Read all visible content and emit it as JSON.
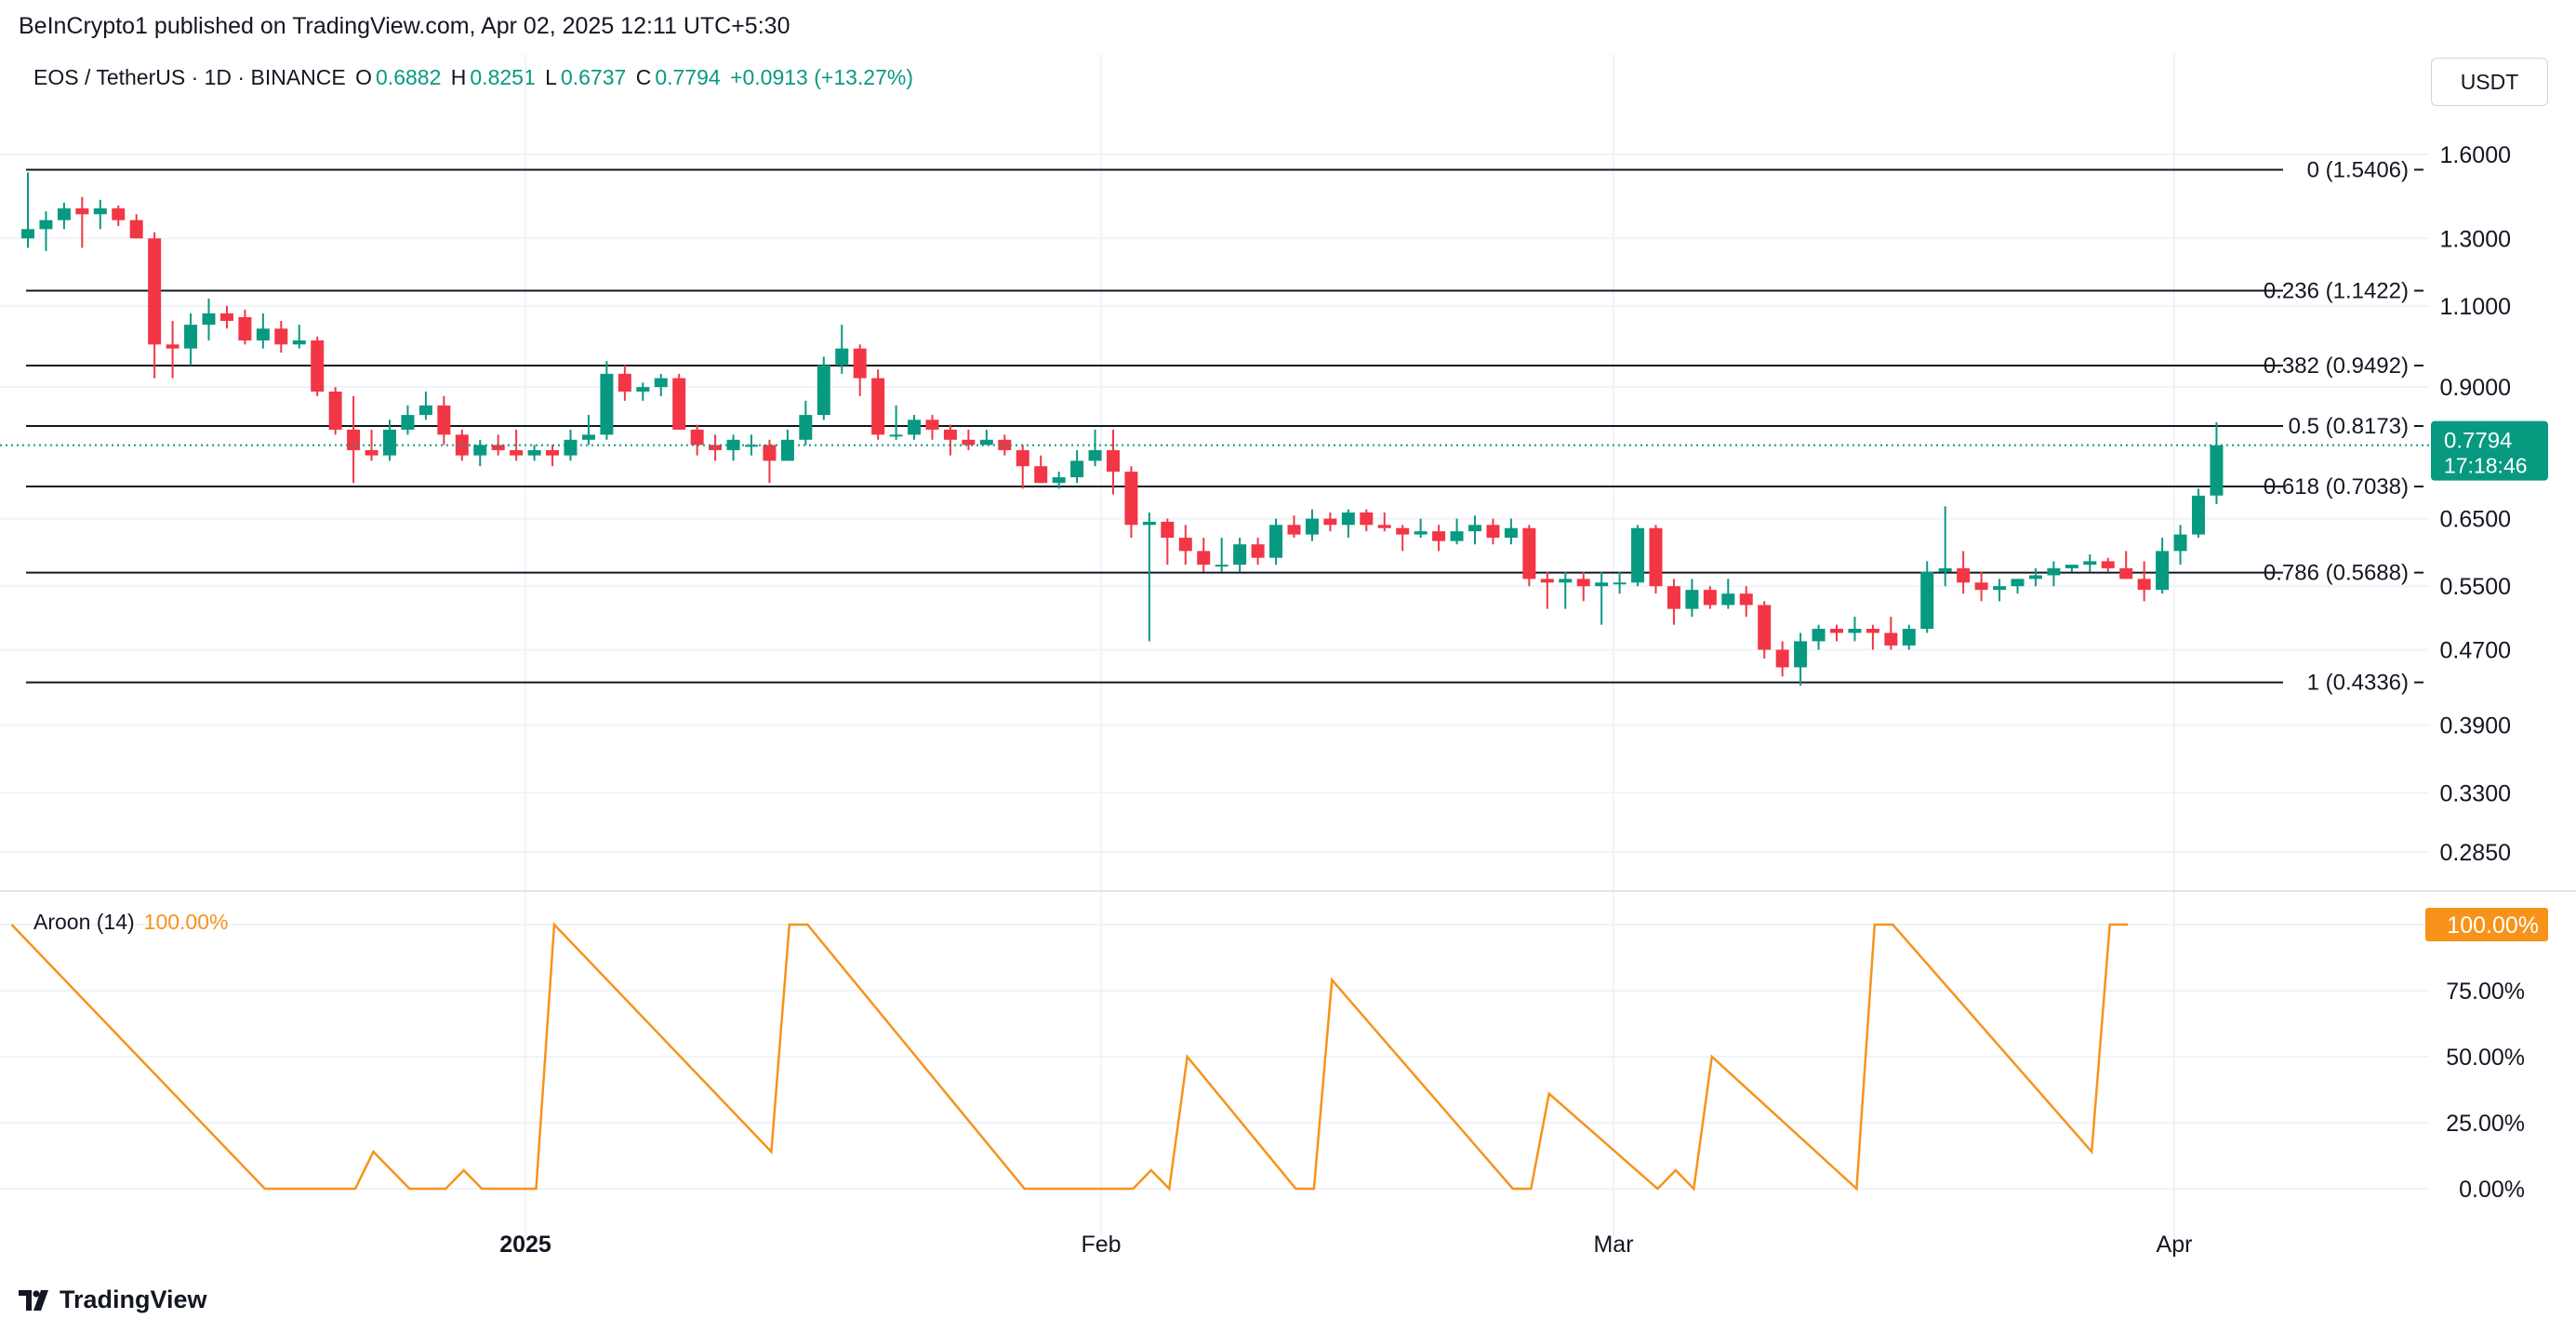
{
  "header": {
    "published": "BeInCrypto1 published on TradingView.com, Apr 02, 2025 12:11 UTC+5:30",
    "symbol": "EOS / TetherUS · 1D · BINANCE",
    "o_label": "O",
    "o_value": "0.6882",
    "h_label": "H",
    "h_value": "0.8251",
    "l_label": "L",
    "l_value": "0.6737",
    "c_label": "C",
    "c_value": "0.7794",
    "change": "+0.0913 (+13.27%)"
  },
  "toolbar": {
    "currency_label": "USDT"
  },
  "footer": {
    "brand": "TradingView"
  },
  "colors": {
    "up": "#089981",
    "down": "#f23645",
    "aroon": "#f7931a",
    "grid": "#f0f3fa",
    "fib": "#131722"
  },
  "chart_data": [
    {
      "type": "candlestick",
      "scale": "log",
      "y_ticks": [
        "1.6000",
        "1.3000",
        "1.1000",
        "0.9000",
        "0.6500",
        "0.5500",
        "0.4700",
        "0.3900",
        "0.3300",
        "0.2850"
      ],
      "x_ticks": [
        "2025",
        "Feb",
        "Mar",
        "Apr"
      ],
      "last_price": {
        "value": "0.7794",
        "countdown": "17:18:46"
      },
      "fib_levels": [
        {
          "ratio": 0,
          "price": 1.5406,
          "label": "0 (1.5406)"
        },
        {
          "ratio": 0.236,
          "price": 1.1422,
          "label": "0.236 (1.1422)"
        },
        {
          "ratio": 0.382,
          "price": 0.9492,
          "label": "0.382 (0.9492)"
        },
        {
          "ratio": 0.5,
          "price": 0.8173,
          "label": "0.5 (0.8173)"
        },
        {
          "ratio": 0.618,
          "price": 0.7038,
          "label": "0.618 (0.7038)"
        },
        {
          "ratio": 0.786,
          "price": 0.5688,
          "label": "0.786 (0.5688)"
        },
        {
          "ratio": 1,
          "price": 0.4336,
          "label": "1 (0.4336)"
        }
      ],
      "candles": [
        [
          1.3,
          1.53,
          1.27,
          1.33
        ],
        [
          1.33,
          1.39,
          1.26,
          1.36
        ],
        [
          1.36,
          1.42,
          1.33,
          1.4
        ],
        [
          1.4,
          1.44,
          1.27,
          1.38
        ],
        [
          1.38,
          1.43,
          1.33,
          1.4
        ],
        [
          1.4,
          1.41,
          1.34,
          1.36
        ],
        [
          1.36,
          1.38,
          1.3,
          1.3
        ],
        [
          1.3,
          1.32,
          0.92,
          1.0
        ],
        [
          1.0,
          1.06,
          0.92,
          0.99
        ],
        [
          0.99,
          1.08,
          0.95,
          1.05
        ],
        [
          1.05,
          1.12,
          1.01,
          1.08
        ],
        [
          1.08,
          1.1,
          1.04,
          1.06
        ],
        [
          1.07,
          1.09,
          1.0,
          1.01
        ],
        [
          1.01,
          1.08,
          0.99,
          1.04
        ],
        [
          1.04,
          1.06,
          0.98,
          1.0
        ],
        [
          1.0,
          1.05,
          0.99,
          1.01
        ],
        [
          1.01,
          1.02,
          0.88,
          0.89
        ],
        [
          0.89,
          0.9,
          0.8,
          0.81
        ],
        [
          0.81,
          0.88,
          0.71,
          0.77
        ],
        [
          0.77,
          0.81,
          0.75,
          0.76
        ],
        [
          0.76,
          0.83,
          0.75,
          0.81
        ],
        [
          0.81,
          0.86,
          0.8,
          0.84
        ],
        [
          0.84,
          0.89,
          0.83,
          0.86
        ],
        [
          0.86,
          0.88,
          0.78,
          0.8
        ],
        [
          0.8,
          0.81,
          0.75,
          0.76
        ],
        [
          0.76,
          0.79,
          0.74,
          0.78
        ],
        [
          0.78,
          0.8,
          0.76,
          0.77
        ],
        [
          0.77,
          0.81,
          0.75,
          0.76
        ],
        [
          0.76,
          0.78,
          0.75,
          0.77
        ],
        [
          0.77,
          0.78,
          0.74,
          0.76
        ],
        [
          0.76,
          0.81,
          0.75,
          0.79
        ],
        [
          0.79,
          0.84,
          0.78,
          0.8
        ],
        [
          0.8,
          0.96,
          0.79,
          0.93
        ],
        [
          0.93,
          0.95,
          0.87,
          0.89
        ],
        [
          0.89,
          0.91,
          0.87,
          0.9
        ],
        [
          0.9,
          0.93,
          0.88,
          0.92
        ],
        [
          0.92,
          0.93,
          0.81,
          0.81
        ],
        [
          0.81,
          0.82,
          0.76,
          0.78
        ],
        [
          0.78,
          0.8,
          0.75,
          0.77
        ],
        [
          0.77,
          0.8,
          0.75,
          0.79
        ],
        [
          0.78,
          0.8,
          0.76,
          0.78
        ],
        [
          0.78,
          0.79,
          0.71,
          0.75
        ],
        [
          0.75,
          0.81,
          0.75,
          0.79
        ],
        [
          0.79,
          0.87,
          0.78,
          0.84
        ],
        [
          0.84,
          0.97,
          0.83,
          0.95
        ],
        [
          0.95,
          1.05,
          0.93,
          0.99
        ],
        [
          0.99,
          1.0,
          0.88,
          0.92
        ],
        [
          0.92,
          0.94,
          0.79,
          0.8
        ],
        [
          0.8,
          0.86,
          0.79,
          0.8
        ],
        [
          0.8,
          0.84,
          0.79,
          0.83
        ],
        [
          0.83,
          0.84,
          0.79,
          0.81
        ],
        [
          0.81,
          0.82,
          0.76,
          0.79
        ],
        [
          0.79,
          0.81,
          0.77,
          0.78
        ],
        [
          0.78,
          0.81,
          0.78,
          0.79
        ],
        [
          0.79,
          0.8,
          0.76,
          0.77
        ],
        [
          0.77,
          0.78,
          0.7,
          0.74
        ],
        [
          0.74,
          0.76,
          0.71,
          0.71
        ],
        [
          0.71,
          0.73,
          0.7,
          0.72
        ],
        [
          0.72,
          0.77,
          0.71,
          0.75
        ],
        [
          0.75,
          0.81,
          0.74,
          0.77
        ],
        [
          0.77,
          0.81,
          0.69,
          0.73
        ],
        [
          0.73,
          0.74,
          0.62,
          0.64
        ],
        [
          0.64,
          0.66,
          0.48,
          0.645
        ],
        [
          0.645,
          0.65,
          0.58,
          0.62
        ],
        [
          0.62,
          0.64,
          0.58,
          0.6
        ],
        [
          0.6,
          0.62,
          0.57,
          0.58
        ],
        [
          0.58,
          0.62,
          0.57,
          0.58
        ],
        [
          0.58,
          0.62,
          0.57,
          0.61
        ],
        [
          0.61,
          0.62,
          0.58,
          0.59
        ],
        [
          0.59,
          0.65,
          0.58,
          0.64
        ],
        [
          0.64,
          0.655,
          0.62,
          0.625
        ],
        [
          0.625,
          0.665,
          0.615,
          0.65
        ],
        [
          0.65,
          0.66,
          0.63,
          0.64
        ],
        [
          0.64,
          0.665,
          0.62,
          0.66
        ],
        [
          0.66,
          0.665,
          0.63,
          0.64
        ],
        [
          0.64,
          0.66,
          0.63,
          0.635
        ],
        [
          0.635,
          0.64,
          0.6,
          0.625
        ],
        [
          0.625,
          0.65,
          0.62,
          0.63
        ],
        [
          0.63,
          0.64,
          0.6,
          0.615
        ],
        [
          0.615,
          0.65,
          0.61,
          0.63
        ],
        [
          0.63,
          0.655,
          0.61,
          0.64
        ],
        [
          0.64,
          0.65,
          0.61,
          0.62
        ],
        [
          0.62,
          0.65,
          0.61,
          0.635
        ],
        [
          0.635,
          0.64,
          0.55,
          0.56
        ],
        [
          0.56,
          0.57,
          0.52,
          0.555
        ],
        [
          0.555,
          0.57,
          0.52,
          0.56
        ],
        [
          0.56,
          0.57,
          0.53,
          0.55
        ],
        [
          0.55,
          0.57,
          0.5,
          0.555
        ],
        [
          0.555,
          0.57,
          0.54,
          0.555
        ],
        [
          0.555,
          0.64,
          0.55,
          0.635
        ],
        [
          0.635,
          0.64,
          0.54,
          0.55
        ],
        [
          0.55,
          0.56,
          0.5,
          0.52
        ],
        [
          0.52,
          0.56,
          0.51,
          0.545
        ],
        [
          0.545,
          0.55,
          0.52,
          0.525
        ],
        [
          0.525,
          0.56,
          0.52,
          0.54
        ],
        [
          0.54,
          0.55,
          0.51,
          0.525
        ],
        [
          0.525,
          0.53,
          0.46,
          0.47
        ],
        [
          0.47,
          0.48,
          0.44,
          0.45
        ],
        [
          0.45,
          0.49,
          0.43,
          0.48
        ],
        [
          0.48,
          0.5,
          0.47,
          0.495
        ],
        [
          0.495,
          0.5,
          0.48,
          0.49
        ],
        [
          0.49,
          0.51,
          0.48,
          0.495
        ],
        [
          0.495,
          0.5,
          0.47,
          0.49
        ],
        [
          0.49,
          0.51,
          0.47,
          0.475
        ],
        [
          0.475,
          0.5,
          0.47,
          0.495
        ],
        [
          0.495,
          0.585,
          0.49,
          0.57
        ],
        [
          0.57,
          0.67,
          0.55,
          0.575
        ],
        [
          0.575,
          0.6,
          0.54,
          0.555
        ],
        [
          0.555,
          0.57,
          0.53,
          0.545
        ],
        [
          0.545,
          0.56,
          0.53,
          0.55
        ],
        [
          0.55,
          0.56,
          0.54,
          0.56
        ],
        [
          0.56,
          0.575,
          0.55,
          0.565
        ],
        [
          0.565,
          0.585,
          0.55,
          0.575
        ],
        [
          0.575,
          0.58,
          0.57,
          0.58
        ],
        [
          0.58,
          0.595,
          0.57,
          0.585
        ],
        [
          0.585,
          0.59,
          0.57,
          0.575
        ],
        [
          0.575,
          0.6,
          0.56,
          0.56
        ],
        [
          0.56,
          0.585,
          0.53,
          0.545
        ],
        [
          0.545,
          0.62,
          0.54,
          0.6
        ],
        [
          0.6,
          0.64,
          0.58,
          0.625
        ],
        [
          0.625,
          0.7,
          0.62,
          0.688
        ],
        [
          0.6882,
          0.8251,
          0.6737,
          0.7794
        ]
      ]
    },
    {
      "type": "line",
      "title": "Aroon (14)",
      "value_label": "100.00%",
      "y_ticks": [
        "100.00%",
        "75.00%",
        "50.00%",
        "25.00%",
        "0.00%"
      ],
      "ylim": [
        0,
        100
      ],
      "points": [
        [
          0,
          100
        ],
        [
          14,
          0
        ],
        [
          19,
          0
        ],
        [
          20,
          14
        ],
        [
          22,
          0
        ],
        [
          24,
          0
        ],
        [
          25,
          7
        ],
        [
          26,
          0
        ],
        [
          29,
          0
        ],
        [
          30,
          100
        ],
        [
          42,
          14
        ],
        [
          43,
          100
        ],
        [
          44,
          100
        ],
        [
          56,
          0
        ],
        [
          62,
          0
        ],
        [
          63,
          7
        ],
        [
          64,
          0
        ],
        [
          65,
          50
        ],
        [
          71,
          0
        ],
        [
          72,
          0
        ],
        [
          73,
          79
        ],
        [
          83,
          0
        ],
        [
          84,
          0
        ],
        [
          85,
          36
        ],
        [
          91,
          0
        ],
        [
          92,
          7
        ],
        [
          93,
          0
        ],
        [
          94,
          50
        ],
        [
          102,
          0
        ],
        [
          103,
          100
        ],
        [
          104,
          100
        ],
        [
          115,
          14
        ],
        [
          116,
          100
        ],
        [
          117,
          100
        ]
      ]
    }
  ]
}
